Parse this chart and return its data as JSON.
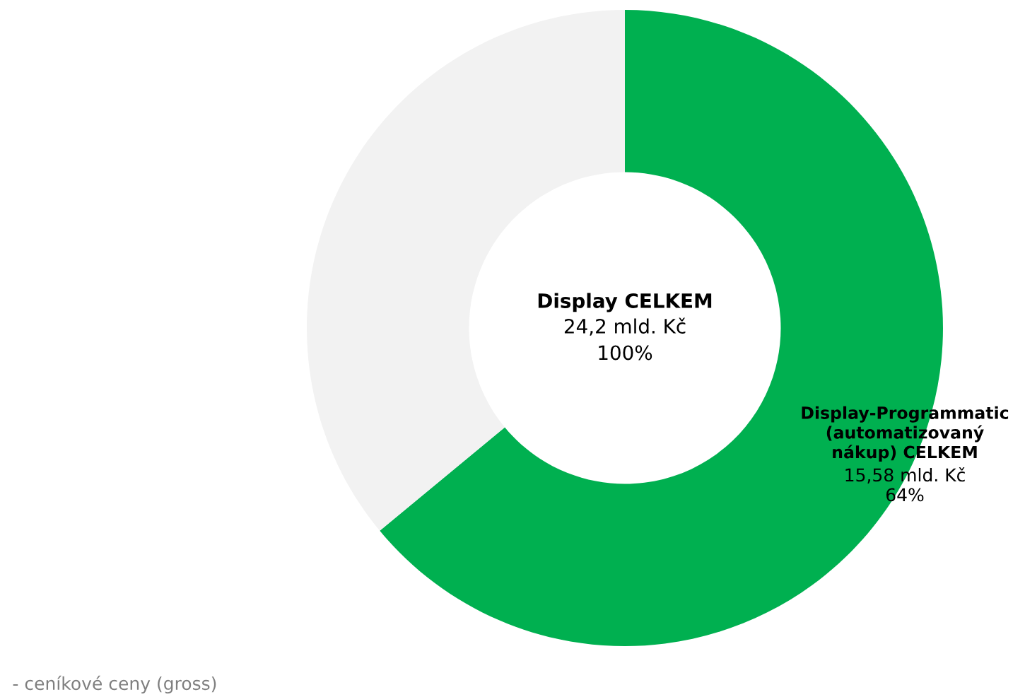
{
  "chart_data": {
    "type": "donut",
    "categories": [
      "Display-Programmatic\n(automatizovaný\nnákup) CELKEM",
      null
    ],
    "values": [
      64,
      36
    ],
    "colors": [
      "#00b050",
      "#f2f2f2"
    ],
    "value_labels": [
      "15,58 mld. Kč\n64%",
      null
    ],
    "annotations": [
      "Display CELKEM",
      "24,2 mld. Kč\n100%",
      "- ceníkové ceny (gross)"
    ],
    "legend": false
  }
}
